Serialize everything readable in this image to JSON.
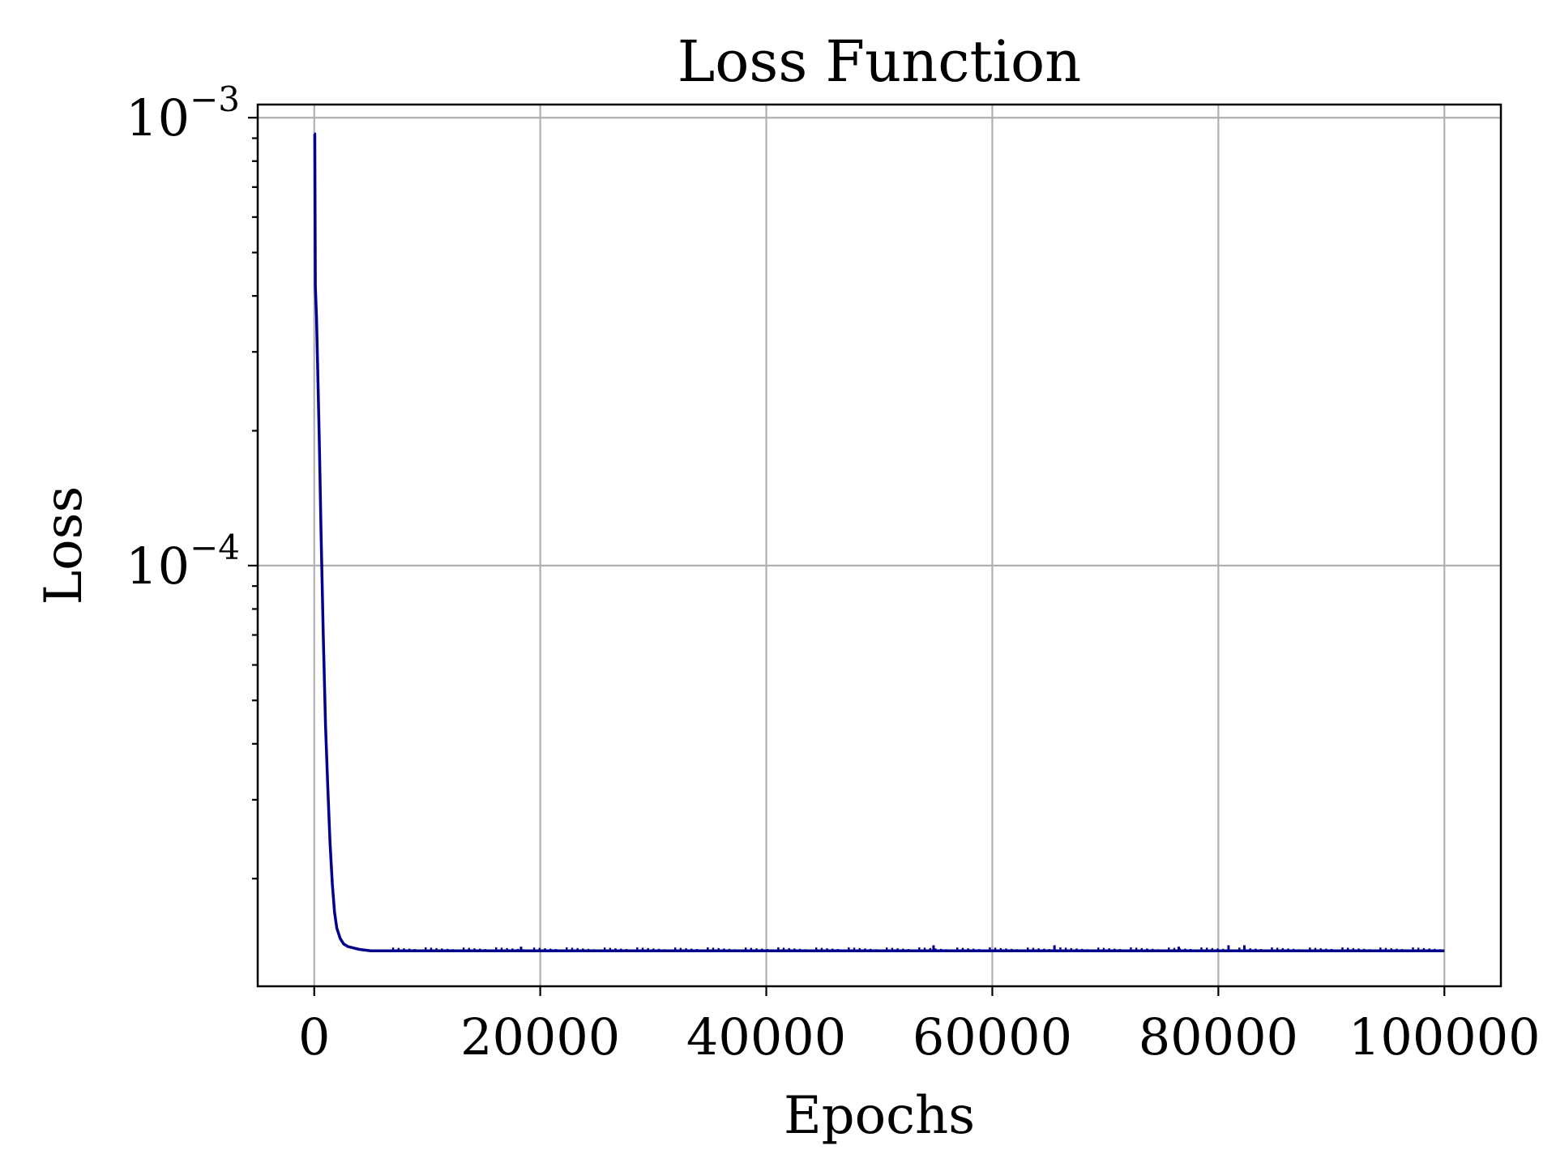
{
  "chart_data": {
    "type": "line",
    "title": "Loss Function",
    "xlabel": "Epochs",
    "ylabel": "Loss",
    "xlim": [
      -5000,
      105000
    ],
    "ylim": [
      1.15e-05,
      0.00107
    ],
    "yscale": "log",
    "grid": true,
    "line_color": "#00008b",
    "xticks": [
      {
        "value": 0,
        "label": "0"
      },
      {
        "value": 20000,
        "label": "20000"
      },
      {
        "value": 40000,
        "label": "40000"
      },
      {
        "value": 60000,
        "label": "60000"
      },
      {
        "value": 80000,
        "label": "80000"
      },
      {
        "value": 100000,
        "label": "100000"
      }
    ],
    "yticks": [
      {
        "value": 0.001,
        "base": "10",
        "exponent": "−3"
      },
      {
        "value": 0.0001,
        "base": "10",
        "exponent": "−4"
      }
    ],
    "series": [
      {
        "x": [
          0,
          50,
          100,
          200,
          300,
          450,
          600,
          800,
          1000,
          1200,
          1400,
          1600,
          1800,
          2000,
          2300,
          2600,
          3000,
          3500,
          4000,
          5000,
          6500,
          10000,
          20000,
          30000,
          40000,
          50000,
          60000,
          70000,
          80000,
          90000,
          100000
        ],
        "y": [
          0.00092,
          0.00092,
          0.00042,
          0.00036,
          0.00028,
          0.00019,
          0.00012,
          7e-05,
          4.4e-05,
          3.2e-05,
          2.4e-05,
          1.95e-05,
          1.68e-05,
          1.55e-05,
          1.47e-05,
          1.43e-05,
          1.41e-05,
          1.4e-05,
          1.39e-05,
          1.38e-05,
          1.38e-05,
          1.38e-05,
          1.38e-05,
          1.38e-05,
          1.38e-05,
          1.38e-05,
          1.38e-05,
          1.38e-05,
          1.38e-05,
          1.38e-05,
          1.38e-05
        ]
      }
    ],
    "spikes": [
      {
        "x": 18300,
        "y": 1.41e-05
      },
      {
        "x": 54800,
        "y": 1.42e-05
      },
      {
        "x": 65500,
        "y": 1.42e-05
      },
      {
        "x": 76500,
        "y": 1.41e-05
      },
      {
        "x": 80900,
        "y": 1.42e-05
      },
      {
        "x": 82300,
        "y": 1.42e-05
      }
    ]
  }
}
